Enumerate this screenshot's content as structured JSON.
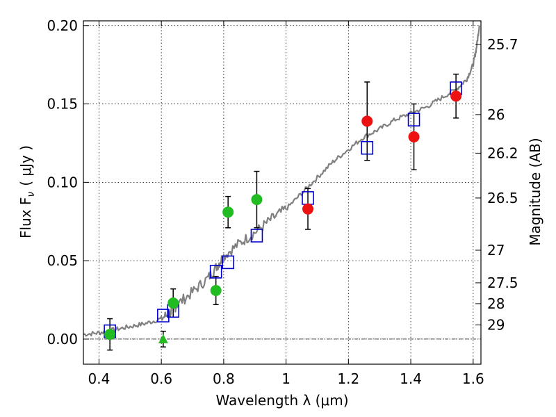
{
  "chart_data": {
    "type": "scatter",
    "xlabel": "Wavelength  λ (μm)",
    "ylabel": "Flux  F",
    "ylabel_sub": "ν",
    "ylabel_unit": "( μJy )",
    "ylabel_right": "Magnitude (AB)",
    "xlim": [
      0.35,
      1.625
    ],
    "ylim": [
      -0.016,
      0.203
    ],
    "x_ticks": [
      0.4,
      0.6,
      0.8,
      1.0,
      1.2,
      1.4,
      1.6
    ],
    "x_tick_labels": [
      "0.4",
      "0.6",
      "0.8",
      "1",
      "1.2",
      "1.4",
      "1.6"
    ],
    "y_ticks": [
      0.0,
      0.05,
      0.1,
      0.15,
      0.2
    ],
    "y_tick_labels": [
      "0.00",
      "0.05",
      "0.10",
      "0.15",
      "0.20"
    ],
    "right_ticks": [
      {
        "label": "25.7",
        "flux": 0.1879
      },
      {
        "label": "26",
        "flux": 0.1432
      },
      {
        "label": "26.2",
        "flux": 0.1186
      },
      {
        "label": "26.5",
        "flux": 0.09
      },
      {
        "label": "27",
        "flux": 0.0567
      },
      {
        "label": "27.5",
        "flux": 0.0359
      },
      {
        "label": "28",
        "flux": 0.0226
      },
      {
        "label": "29",
        "flux": 0.009
      }
    ],
    "grid": true,
    "zero_line": true,
    "colors": {
      "model_spectrum": "#808080",
      "model_photometry": "#0000cc",
      "green_points": "#22bb22",
      "red_points": "#ee1111",
      "errorbars": "#000000"
    },
    "model_spectrum": {
      "x": [
        0.35,
        0.4,
        0.45,
        0.5,
        0.55,
        0.6,
        0.63,
        0.65,
        0.7,
        0.75,
        0.78,
        0.8,
        0.85,
        0.9,
        0.95,
        1.0,
        1.05,
        1.1,
        1.15,
        1.2,
        1.25,
        1.3,
        1.35,
        1.4,
        1.45,
        1.5,
        1.55,
        1.58,
        1.6,
        1.61,
        1.62
      ],
      "y": [
        0.003,
        0.004,
        0.006,
        0.008,
        0.01,
        0.013,
        0.017,
        0.022,
        0.03,
        0.039,
        0.047,
        0.053,
        0.061,
        0.068,
        0.076,
        0.083,
        0.093,
        0.103,
        0.113,
        0.121,
        0.129,
        0.134,
        0.14,
        0.144,
        0.148,
        0.154,
        0.16,
        0.166,
        0.175,
        0.185,
        0.2
      ]
    },
    "model_photometry": {
      "x": [
        0.435,
        0.606,
        0.638,
        0.775,
        0.814,
        0.906,
        1.07,
        1.26,
        1.41,
        1.545
      ],
      "y": [
        0.005,
        0.015,
        0.018,
        0.043,
        0.049,
        0.066,
        0.09,
        0.122,
        0.14,
        0.16
      ]
    },
    "observed_green": {
      "x": [
        0.435,
        0.638,
        0.775,
        0.814,
        0.906
      ],
      "y": [
        0.003,
        0.023,
        0.031,
        0.081,
        0.089
      ],
      "err": [
        0.01,
        0.009,
        0.009,
        0.01,
        0.018
      ]
    },
    "observed_red": {
      "x": [
        1.07,
        1.26,
        1.41,
        1.545
      ],
      "y": [
        0.083,
        0.139,
        0.129,
        0.155
      ],
      "err": [
        0.013,
        0.025,
        0.021,
        0.014
      ]
    },
    "upper_limit_green": {
      "x": [
        0.606
      ],
      "y": [
        0.0
      ],
      "err": [
        0.005
      ]
    }
  }
}
